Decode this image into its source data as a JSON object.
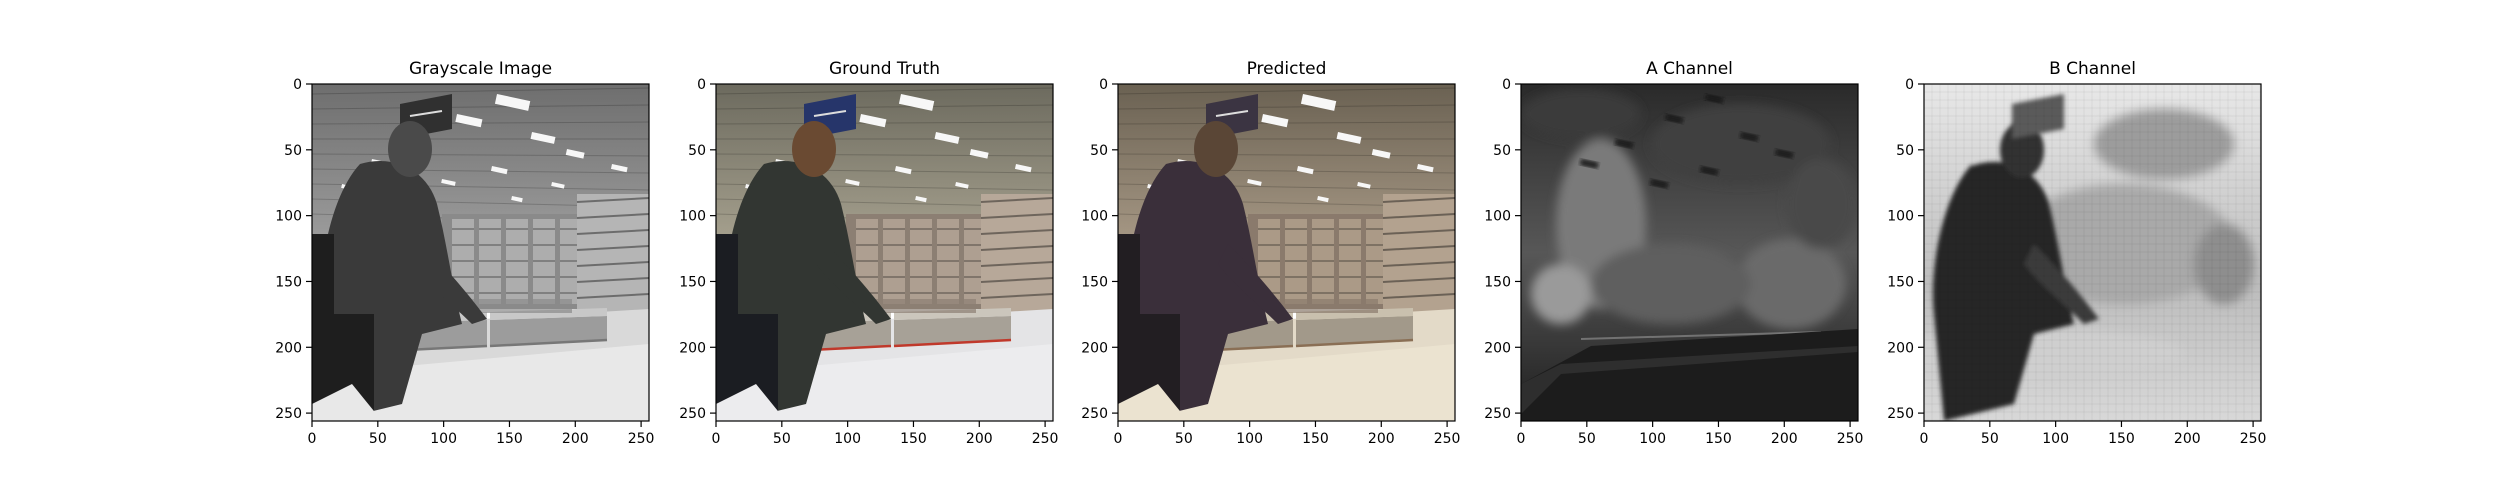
{
  "figure": {
    "background": "#ffffff"
  },
  "chart_data": [
    {
      "type": "image",
      "title": "Grayscale Image",
      "xlim": [
        0,
        256
      ],
      "ylim": [
        256,
        0
      ],
      "xticks": [
        0,
        50,
        100,
        150,
        200,
        250
      ],
      "yticks": [
        0,
        50,
        100,
        150,
        200,
        250
      ],
      "colormap": "grayscale",
      "content": "grayscale"
    },
    {
      "type": "image",
      "title": "Ground Truth",
      "xlim": [
        0,
        256
      ],
      "ylim": [
        256,
        0
      ],
      "xticks": [
        0,
        50,
        100,
        150,
        200,
        250
      ],
      "yticks": [
        0,
        50,
        100,
        150,
        200,
        250
      ],
      "colormap": "color",
      "content": "truth"
    },
    {
      "type": "image",
      "title": "Predicted",
      "xlim": [
        0,
        256
      ],
      "ylim": [
        256,
        0
      ],
      "xticks": [
        0,
        50,
        100,
        150,
        200,
        250
      ],
      "yticks": [
        0,
        50,
        100,
        150,
        200,
        250
      ],
      "colormap": "color",
      "content": "predicted"
    },
    {
      "type": "image",
      "title": "A Channel",
      "xlim": [
        0,
        256
      ],
      "ylim": [
        256,
        0
      ],
      "xticks": [
        0,
        50,
        100,
        150,
        200,
        250
      ],
      "yticks": [
        0,
        50,
        100,
        150,
        200,
        250
      ],
      "colormap": "gray",
      "content": "a-channel"
    },
    {
      "type": "image",
      "title": "B Channel",
      "xlim": [
        0,
        256
      ],
      "ylim": [
        256,
        0
      ],
      "xticks": [
        0,
        50,
        100,
        150,
        200,
        250
      ],
      "yticks": [
        0,
        50,
        100,
        150,
        200,
        250
      ],
      "colormap": "gray",
      "content": "b-channel"
    }
  ]
}
